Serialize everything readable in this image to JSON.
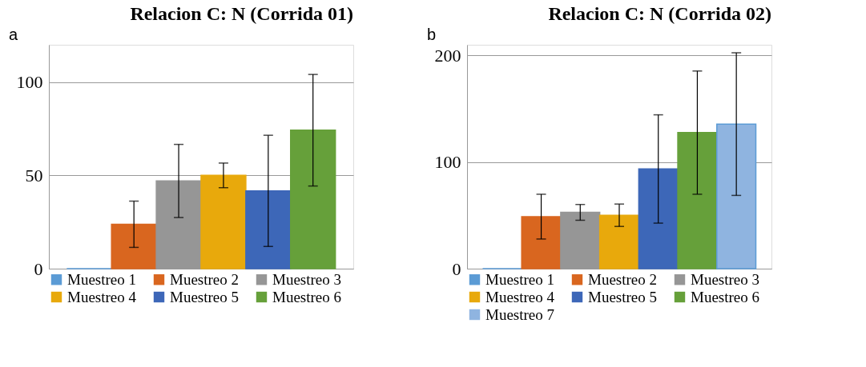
{
  "chart_data": [
    {
      "type": "bar",
      "title": "Relacion C: N (Corrida 01)",
      "annotations": [
        "a"
      ],
      "categories": [
        null
      ],
      "ylim": [
        0,
        120
      ],
      "yticks": [
        0,
        50,
        100
      ],
      "grid": "y",
      "legend": "bottom",
      "series": [
        {
          "name": "Muestreo 1",
          "color": "#5b9bd5",
          "values": [
            0
          ]
        },
        {
          "name": "Muestreo 2",
          "color": "#d9661f",
          "values": [
            23.8
          ],
          "errors": [
            12.4
          ]
        },
        {
          "name": "Muestreo 3",
          "color": "#969696",
          "values": [
            47
          ],
          "errors": [
            19.6
          ]
        },
        {
          "name": "Muestreo 4",
          "color": "#e8a90c",
          "values": [
            50
          ],
          "errors": [
            6.6
          ]
        },
        {
          "name": "Muestreo 5",
          "color": "#3d67b8",
          "values": [
            41.7
          ],
          "errors": [
            29.8
          ]
        },
        {
          "name": "Muestreo 6",
          "color": "#66a03a",
          "values": [
            74.2
          ],
          "errors": [
            29.9
          ]
        }
      ]
    },
    {
      "type": "bar",
      "title": "Relacion C: N (Corrida 02)",
      "annotations": [
        "b"
      ],
      "categories": [
        null
      ],
      "ylim": [
        0,
        210
      ],
      "yticks": [
        0,
        100,
        200
      ],
      "grid": "y",
      "legend": "bottom",
      "series": [
        {
          "name": "Muestreo 1",
          "color": "#5b9bd5",
          "values": [
            0
          ]
        },
        {
          "name": "Muestreo 2",
          "color": "#d9661f",
          "values": [
            48.8
          ],
          "errors": [
            21
          ]
        },
        {
          "name": "Muestreo 3",
          "color": "#969696",
          "values": [
            52.8
          ],
          "errors": [
            7.4
          ]
        },
        {
          "name": "Muestreo 4",
          "color": "#e8a90c",
          "values": [
            50.1
          ],
          "errors": [
            10.5
          ]
        },
        {
          "name": "Muestreo 5",
          "color": "#3d67b8",
          "values": [
            93.5
          ],
          "errors": [
            50.8
          ]
        },
        {
          "name": "Muestreo 6",
          "color": "#66a03a",
          "values": [
            127.6
          ],
          "errors": [
            57.8
          ]
        },
        {
          "name": "Muestreo 7",
          "color": "#8fb4e0",
          "values": [
            135.6
          ],
          "errors": [
            66.9
          ]
        }
      ]
    }
  ]
}
